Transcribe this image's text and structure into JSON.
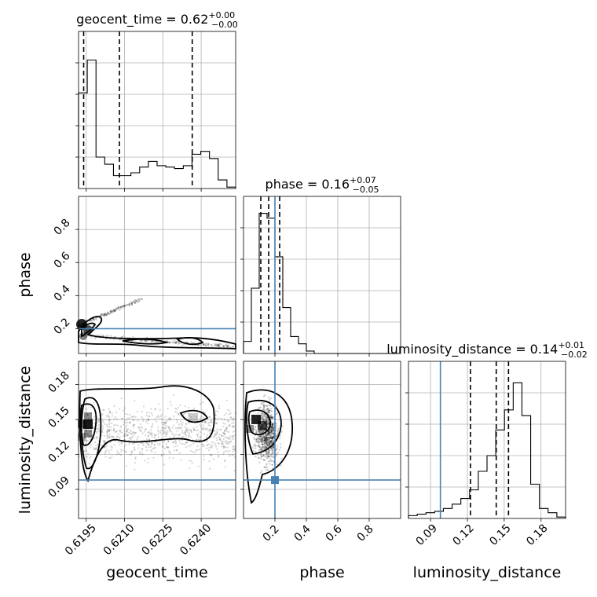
{
  "chart_data": {
    "type": "corner",
    "parameters": [
      {
        "name": "geocent_time",
        "label": "geocent_time",
        "title": "geocent_time = 0.62",
        "title_up": "+0.00",
        "title_down": "−0.00",
        "range": [
          0.6192,
          0.62535
        ],
        "ticks": [
          0.6195,
          0.621,
          0.6225,
          0.624
        ],
        "tick_labels": [
          "0.6195",
          "0.6210",
          "0.6225",
          "0.6240"
        ],
        "quantiles": [
          0.6194,
          0.6208,
          0.62365
        ],
        "truth": null,
        "hist_heights": [
          0.67,
          0.9,
          0.22,
          0.17,
          0.09,
          0.09,
          0.11,
          0.15,
          0.19,
          0.16,
          0.15,
          0.14,
          0.16,
          0.24,
          0.26,
          0.21,
          0.06,
          0.01
        ],
        "hist_max": 1.1
      },
      {
        "name": "phase",
        "label": "phase",
        "title": "phase = 0.16",
        "title_up": "+0.07",
        "title_down": "−0.05",
        "range": [
          0.0,
          1.0
        ],
        "ticks": [
          0.2,
          0.4,
          0.6,
          0.8
        ],
        "tick_labels": [
          "0.2",
          "0.4",
          "0.6",
          "0.8"
        ],
        "quantiles": [
          0.11,
          0.16,
          0.23
        ],
        "truth": 0.2,
        "hist_heights": [
          0.05,
          0.27,
          0.58,
          0.56,
          0.4,
          0.19,
          0.07,
          0.04,
          0.01,
          0.0,
          0.0,
          0.0,
          0.0,
          0.0,
          0.0,
          0.0,
          0.0,
          0.0,
          0.0,
          0.0
        ],
        "hist_max": 0.65
      },
      {
        "name": "luminosity_distance",
        "label": "luminosity_distance",
        "title": "luminosity_distance = 0.14",
        "title_up": "+0.01",
        "title_down": "−0.02",
        "range": [
          0.072,
          0.2
        ],
        "ticks": [
          0.09,
          0.12,
          0.15,
          0.18
        ],
        "tick_labels": [
          "0.09",
          "0.12",
          "0.15",
          "0.18"
        ],
        "quantiles": [
          0.1225,
          0.1435,
          0.1535
        ],
        "truth": 0.098,
        "hist_heights": [
          0.02,
          0.03,
          0.04,
          0.05,
          0.07,
          0.1,
          0.14,
          0.2,
          0.33,
          0.44,
          0.62,
          0.76,
          0.95,
          0.72,
          0.24,
          0.07,
          0.04,
          0.01
        ],
        "hist_max": 1.1
      }
    ],
    "pairs": [
      {
        "x": "geocent_time",
        "y": "phase",
        "ylim": [
          0.05,
          1.0
        ],
        "yticks": [
          0.2,
          0.4,
          0.6,
          0.8
        ],
        "ytick_labels": [
          "0.2",
          "0.4",
          "0.6",
          "0.8"
        ],
        "truth_y": 0.2
      },
      {
        "x": "geocent_time",
        "y": "luminosity_distance",
        "ylim": [
          0.065,
          0.2
        ],
        "yticks": [
          0.09,
          0.12,
          0.15,
          0.18
        ],
        "ytick_labels": [
          "0.09",
          "0.12",
          "0.15",
          "0.18"
        ],
        "truth_y": 0.098
      },
      {
        "x": "phase",
        "y": "luminosity_distance",
        "truth_x": 0.2,
        "truth_y": 0.098
      }
    ],
    "grid": true,
    "quantile_levels": [
      0.16,
      0.5,
      0.84
    ],
    "truth_color": "#4682b4"
  },
  "axis_labels": {
    "row_phase": "phase",
    "row_distance": "luminosity_distance",
    "col_time": "geocent_time",
    "col_phase": "phase",
    "col_distance": "luminosity_distance"
  }
}
